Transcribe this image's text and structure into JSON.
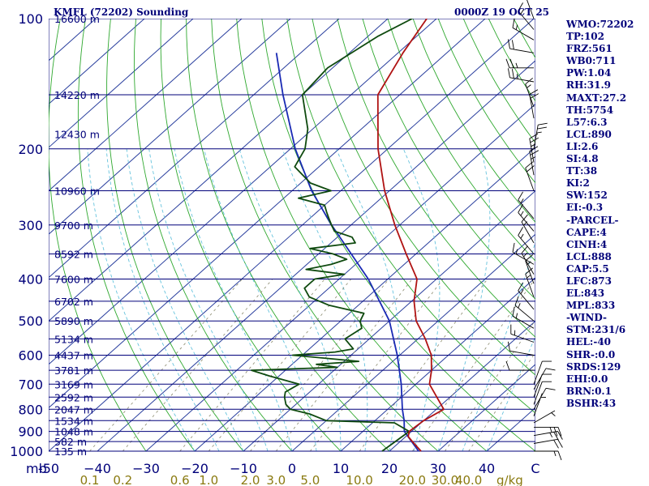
{
  "header": {
    "station": "KMFL (72202) Sounding",
    "time": "0000Z 19 OCT 25"
  },
  "indices": [
    "WMO:72202",
    "TP:102",
    "FRZ:561",
    "WB0:711",
    "PW:1.04",
    "RH:31.9",
    "MAXT:27.2",
    "TH:5754",
    "L57:6.3",
    "LCL:890",
    "LI:2.6",
    "SI:4.8",
    "TT:38",
    "KI:2",
    "SW:152",
    "EI:-0.3",
    "-PARCEL-",
    "CAPE:4",
    "CINH:4",
    "LCL:888",
    "CAP:5.5",
    "LFC:873",
    "EL:843",
    "MPL:833",
    "-WIND-",
    "STM:231/6",
    "HEL:-40",
    "SHR-:0.0",
    "SRDS:129",
    "EHI:0.0",
    "BRN:0.1",
    "BSHR:43"
  ],
  "colors": {
    "text": "#00007a",
    "isobar": "#00007a",
    "isotherm": "#2a3f9e",
    "dry_adiabat": "#2fa82f",
    "moist_adiabat": "#66c3dd",
    "mixing_ratio": "#8a8a6e",
    "temperature": "#b01313",
    "dewpoint": "#0f4a0f",
    "parcel": "#1a2ab4",
    "wind_barb": "#000000",
    "mixing_label": "#8a7a10"
  },
  "chart_data": {
    "type": "skew-t log-p sounding",
    "ylim": [
      1000,
      100
    ],
    "xlim": [
      -50,
      50
    ],
    "pressure_labels": [
      {
        "p": 100,
        "label": "100"
      },
      {
        "p": 200,
        "label": "200"
      },
      {
        "p": 300,
        "label": "300"
      },
      {
        "p": 400,
        "label": "400"
      },
      {
        "p": 500,
        "label": "500"
      },
      {
        "p": 600,
        "label": "600"
      },
      {
        "p": 700,
        "label": "700"
      },
      {
        "p": 800,
        "label": "800"
      },
      {
        "p": 900,
        "label": "900"
      },
      {
        "p": 1000,
        "label": "1000"
      }
    ],
    "height_labels": [
      {
        "p": 100,
        "label": "16600 m"
      },
      {
        "p": 150,
        "label": "14220 m"
      },
      {
        "p": 185,
        "label": "12430 m"
      },
      {
        "p": 250,
        "label": "10960 m"
      },
      {
        "p": 300,
        "label": "9700 m"
      },
      {
        "p": 350,
        "label": "8592 m"
      },
      {
        "p": 400,
        "label": "7600 m"
      },
      {
        "p": 450,
        "label": "6702 m"
      },
      {
        "p": 500,
        "label": "5890 m"
      },
      {
        "p": 550,
        "label": "5134 m"
      },
      {
        "p": 600,
        "label": "4437 m"
      },
      {
        "p": 650,
        "label": "3781 m"
      },
      {
        "p": 700,
        "label": "3169 m"
      },
      {
        "p": 750,
        "label": "2592 m"
      },
      {
        "p": 800,
        "label": "2047 m"
      },
      {
        "p": 850,
        "label": "1534 m"
      },
      {
        "p": 900,
        "label": "1048 m"
      },
      {
        "p": 950,
        "label": "582 m"
      },
      {
        "p": 1000,
        "label": "135 m"
      }
    ],
    "x_axis_unit": "mb",
    "temperature_ticks": [
      -50,
      -40,
      -30,
      -20,
      -10,
      0,
      10,
      20,
      30,
      40,
      50
    ],
    "temperature_tick_labels": [
      "-50",
      "−40",
      "−30",
      "−20",
      "−10",
      "0",
      "10",
      "20",
      "30",
      "40",
      "C"
    ],
    "mixing_ratio_unit": "g/kg",
    "mixing_ratio_labels": [
      "0.1",
      "0.2",
      "0.6",
      "1.0",
      "2.0",
      "3.0",
      "5.0",
      "10.0",
      "20.0",
      "30.0",
      "40.0"
    ],
    "mixing_ratio_values": [
      0.1,
      0.2,
      0.6,
      1.0,
      2.0,
      3.0,
      5.0,
      10.0,
      20.0,
      30.0,
      40.0
    ],
    "temperature": [
      [
        1000,
        26.5
      ],
      [
        950,
        22.5
      ],
      [
        925,
        20.5
      ],
      [
        900,
        19.5
      ],
      [
        850,
        20.0
      ],
      [
        800,
        21.5
      ],
      [
        700,
        12.8
      ],
      [
        650,
        10.0
      ],
      [
        600,
        6.5
      ],
      [
        550,
        1.5
      ],
      [
        500,
        -4.5
      ],
      [
        450,
        -9.5
      ],
      [
        400,
        -14.0
      ],
      [
        350,
        -22.0
      ],
      [
        300,
        -31.0
      ],
      [
        250,
        -41.0
      ],
      [
        200,
        -52.0
      ],
      [
        150,
        -64.5
      ],
      [
        120,
        -69.0
      ],
      [
        100,
        -72.0
      ]
    ],
    "dewpoint": [
      [
        1000,
        18.5
      ],
      [
        950,
        19.0
      ],
      [
        900,
        19.5
      ],
      [
        860,
        14.5
      ],
      [
        850,
        0.0
      ],
      [
        820,
        -5.0
      ],
      [
        800,
        -10.0
      ],
      [
        780,
        -12.0
      ],
      [
        750,
        -14.0
      ],
      [
        730,
        -15.0
      ],
      [
        700,
        -14.0
      ],
      [
        670,
        -22.0
      ],
      [
        650,
        -27.0
      ],
      [
        640,
        -10.0
      ],
      [
        630,
        -15.0
      ],
      [
        620,
        -7.0
      ],
      [
        600,
        -22.0
      ],
      [
        590,
        -14.0
      ],
      [
        580,
        -11.0
      ],
      [
        550,
        -15.0
      ],
      [
        520,
        -14.0
      ],
      [
        500,
        -16.0
      ],
      [
        480,
        -17.0
      ],
      [
        460,
        -26.0
      ],
      [
        440,
        -32.0
      ],
      [
        420,
        -35.0
      ],
      [
        400,
        -35.0
      ],
      [
        390,
        -30.0
      ],
      [
        380,
        -39.0
      ],
      [
        370,
        -35.0
      ],
      [
        360,
        -33.0
      ],
      [
        350,
        -37.0
      ],
      [
        340,
        -43.0
      ],
      [
        330,
        -35.0
      ],
      [
        320,
        -37.0
      ],
      [
        310,
        -42.0
      ],
      [
        300,
        -44.0
      ],
      [
        290,
        -46.0
      ],
      [
        280,
        -48.0
      ],
      [
        270,
        -50.0
      ],
      [
        260,
        -57.0
      ],
      [
        250,
        -52.0
      ],
      [
        240,
        -58.0
      ],
      [
        220,
        -65.0
      ],
      [
        200,
        -67.0
      ],
      [
        180,
        -71.0
      ],
      [
        150,
        -80.0
      ],
      [
        130,
        -81.0
      ],
      [
        110,
        -78.0
      ],
      [
        100,
        -75.0
      ]
    ],
    "parcel": [
      [
        1000,
        26.0
      ],
      [
        900,
        18.5
      ],
      [
        850,
        16.0
      ],
      [
        800,
        13.0
      ],
      [
        700,
        7.0
      ],
      [
        600,
        -0.5
      ],
      [
        500,
        -10.0
      ],
      [
        400,
        -24.0
      ],
      [
        300,
        -44.0
      ],
      [
        250,
        -56.0
      ],
      [
        200,
        -69.0
      ],
      [
        150,
        -84.0
      ],
      [
        120,
        -95.0
      ]
    ],
    "wind_barbs": [
      {
        "p": 1000,
        "dir": 90,
        "spd": 15
      },
      {
        "p": 960,
        "dir": 80,
        "spd": 20
      },
      {
        "p": 920,
        "dir": 80,
        "spd": 25
      },
      {
        "p": 880,
        "dir": 90,
        "spd": 25
      },
      {
        "p": 860,
        "dir": 60,
        "spd": 5
      },
      {
        "p": 830,
        "dir": 20,
        "spd": 5
      },
      {
        "p": 800,
        "dir": 30,
        "spd": 10
      },
      {
        "p": 780,
        "dir": 20,
        "spd": 10
      },
      {
        "p": 750,
        "dir": 20,
        "spd": 10
      },
      {
        "p": 720,
        "dir": 30,
        "spd": 10
      },
      {
        "p": 700,
        "dir": 20,
        "spd": 10
      },
      {
        "p": 650,
        "dir": 270,
        "spd": 10
      },
      {
        "p": 600,
        "dir": 280,
        "spd": 10
      },
      {
        "p": 560,
        "dir": 290,
        "spd": 15
      },
      {
        "p": 520,
        "dir": 300,
        "spd": 15
      },
      {
        "p": 500,
        "dir": 310,
        "spd": 15
      },
      {
        "p": 470,
        "dir": 320,
        "spd": 15
      },
      {
        "p": 440,
        "dir": 340,
        "spd": 15
      },
      {
        "p": 410,
        "dir": 340,
        "spd": 15
      },
      {
        "p": 390,
        "dir": 330,
        "spd": 15
      },
      {
        "p": 370,
        "dir": 300,
        "spd": 15
      },
      {
        "p": 350,
        "dir": 320,
        "spd": 15
      },
      {
        "p": 330,
        "dir": 330,
        "spd": 15
      },
      {
        "p": 310,
        "dir": 320,
        "spd": 15
      },
      {
        "p": 290,
        "dir": 320,
        "spd": 15
      },
      {
        "p": 250,
        "dir": 340,
        "spd": 20
      },
      {
        "p": 230,
        "dir": 350,
        "spd": 25
      },
      {
        "p": 215,
        "dir": 350,
        "spd": 25
      },
      {
        "p": 200,
        "dir": 10,
        "spd": 25
      },
      {
        "p": 170,
        "dir": 350,
        "spd": 20
      },
      {
        "p": 160,
        "dir": 340,
        "spd": 15
      },
      {
        "p": 140,
        "dir": 280,
        "spd": 25
      },
      {
        "p": 130,
        "dir": 270,
        "spd": 25
      },
      {
        "p": 120,
        "dir": 280,
        "spd": 20
      },
      {
        "p": 112,
        "dir": 300,
        "spd": 15
      },
      {
        "p": 106,
        "dir": 320,
        "spd": 15
      },
      {
        "p": 100,
        "dir": 340,
        "spd": 15
      }
    ]
  }
}
